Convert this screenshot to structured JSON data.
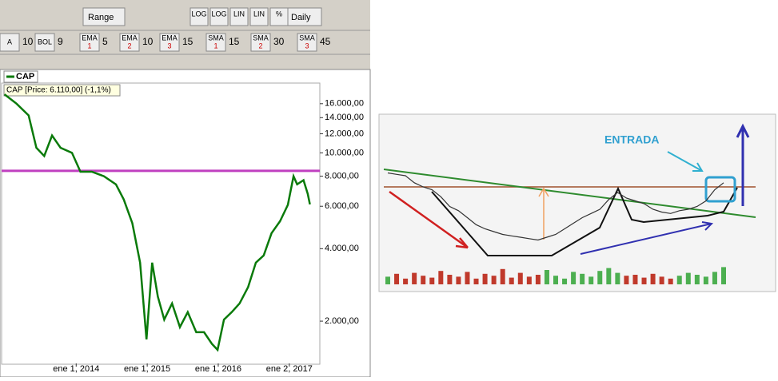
{
  "toolbar": {
    "range": "Range",
    "interval": "Daily",
    "buttons": [
      "LOG",
      "LOG",
      "LIN",
      "LIN",
      "%"
    ],
    "indicators": [
      {
        "name": "A",
        "param": 10
      },
      {
        "name": "BOL",
        "param": 9
      },
      {
        "name": "EMA",
        "sub": "1",
        "param": 5
      },
      {
        "name": "EMA",
        "sub": "2",
        "param": 10
      },
      {
        "name": "EMA",
        "sub": "3",
        "param": 15
      },
      {
        "name": "SMA",
        "sub": "1",
        "param": 15
      },
      {
        "name": "SMA",
        "sub": "2",
        "param": 30
      },
      {
        "name": "SMA",
        "sub": "3",
        "param": 45
      }
    ]
  },
  "chart_data": [
    {
      "type": "line",
      "legend": "CAP",
      "info": "CAP [Price: 6.110,00] (-1,1%)",
      "log_scale": true,
      "x": [
        2012.99,
        2013.16,
        2013.33,
        2013.44,
        2013.55,
        2013.66,
        2013.78,
        2013.94,
        2014.06,
        2014.22,
        2014.39,
        2014.56,
        2014.67,
        2014.79,
        2014.9,
        2014.99,
        2015.07,
        2015.15,
        2015.24,
        2015.35,
        2015.46,
        2015.57,
        2015.69,
        2015.8,
        2015.91,
        2015.99,
        2016.08,
        2016.19,
        2016.3,
        2016.42,
        2016.53,
        2016.64,
        2016.75,
        2016.87,
        2016.98,
        2017.06,
        2017.11,
        2017.2,
        2017.26,
        2017.29
      ],
      "series": [
        {
          "name": "CAP",
          "color": "#0a7a0a",
          "values": [
            17500,
            16000,
            14300,
            10500,
            9700,
            11800,
            10500,
            10000,
            8350,
            8350,
            8000,
            7400,
            6400,
            5100,
            3500,
            1680,
            3500,
            2530,
            2030,
            2370,
            1890,
            2180,
            1800,
            1800,
            1610,
            1520,
            2030,
            2180,
            2370,
            2770,
            3500,
            3750,
            4640,
            5200,
            6080,
            8000,
            7400,
            7700,
            6750,
            6110
          ]
        }
      ],
      "hline": 8420,
      "hline_color": "#c040c0",
      "xlim": [
        2012.95,
        2017.43
      ],
      "xticks": [
        {
          "value": 2014,
          "label": "ene 1, 2014"
        },
        {
          "value": 2015,
          "label": "ene 1, 2015"
        },
        {
          "value": 2016,
          "label": "ene 1, 2016"
        },
        {
          "value": 2017,
          "label": "ene 2, 2017"
        }
      ],
      "ylim": [
        1335,
        18900
      ],
      "yticks": [
        {
          "value": 16000,
          "label": "16.000,00"
        },
        {
          "value": 14000,
          "label": "14.000,00"
        },
        {
          "value": 12000,
          "label": "12.000,00"
        },
        {
          "value": 10000,
          "label": "10.000,00"
        },
        {
          "value": 8000,
          "label": "8.000,00"
        },
        {
          "value": 6000,
          "label": "6.000,00"
        },
        {
          "value": 4000,
          "label": "4.000,00"
        },
        {
          "value": 2000,
          "label": "2.000,00"
        }
      ]
    },
    {
      "type": "line",
      "annotation": "ENTRADA",
      "color": "#333333",
      "values": [
        62,
        61,
        60,
        55,
        52,
        50,
        45,
        38,
        35,
        30,
        25,
        22,
        20,
        18,
        17,
        16,
        15,
        14,
        16,
        18,
        22,
        26,
        30,
        33,
        36,
        43,
        48,
        44,
        42,
        40,
        36,
        34,
        33,
        35,
        36,
        38,
        42,
        50,
        55
      ],
      "volumes": [
        40,
        55,
        30,
        60,
        45,
        35,
        70,
        50,
        40,
        65,
        30,
        55,
        45,
        80,
        35,
        60,
        40,
        50,
        75,
        45,
        30,
        65,
        55,
        40,
        70,
        85,
        60,
        45,
        50,
        35,
        55,
        40,
        30,
        45,
        60,
        50,
        40,
        65,
        90
      ],
      "ylim": [
        0,
        100
      ],
      "volume_lim": [
        0,
        100
      ]
    }
  ]
}
